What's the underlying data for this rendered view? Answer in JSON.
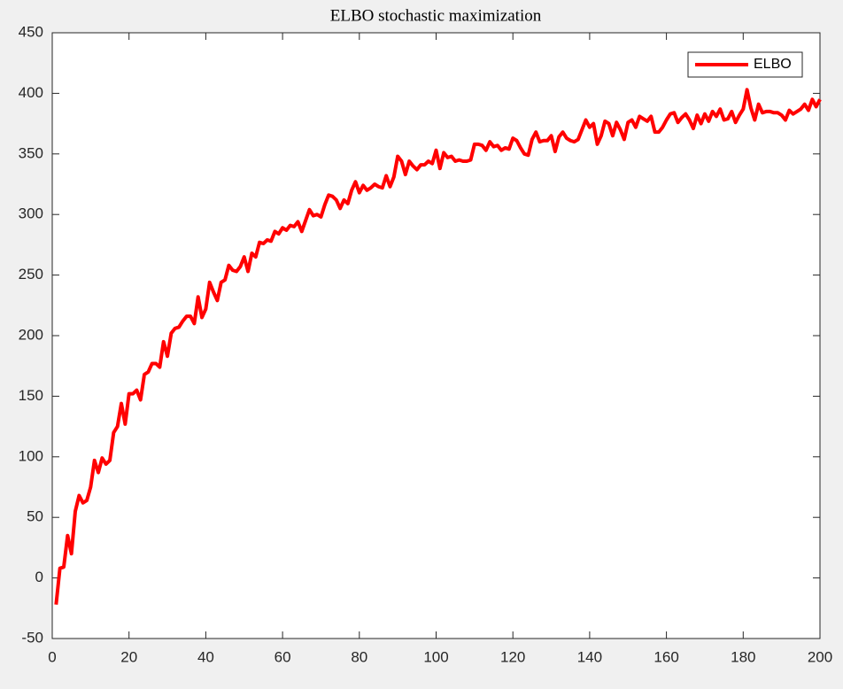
{
  "chart_data": {
    "type": "line",
    "title": "ELBO stochastic maximization",
    "x": [
      1,
      2,
      3,
      4,
      5,
      6,
      7,
      8,
      9,
      10,
      11,
      12,
      13,
      14,
      15,
      16,
      17,
      18,
      19,
      20,
      21,
      22,
      23,
      24,
      25,
      26,
      27,
      28,
      29,
      30,
      31,
      32,
      33,
      34,
      35,
      36,
      37,
      38,
      39,
      40,
      41,
      42,
      43,
      44,
      45,
      46,
      47,
      48,
      49,
      50,
      51,
      52,
      53,
      54,
      55,
      56,
      57,
      58,
      59,
      60,
      61,
      62,
      63,
      64,
      65,
      66,
      67,
      68,
      69,
      70,
      71,
      72,
      73,
      74,
      75,
      76,
      77,
      78,
      79,
      80,
      81,
      82,
      83,
      84,
      85,
      86,
      87,
      88,
      89,
      90,
      91,
      92,
      93,
      94,
      95,
      96,
      97,
      98,
      99,
      100,
      101,
      102,
      103,
      104,
      105,
      106,
      107,
      108,
      109,
      110,
      111,
      112,
      113,
      114,
      115,
      116,
      117,
      118,
      119,
      120,
      121,
      122,
      123,
      124,
      125,
      126,
      127,
      128,
      129,
      130,
      131,
      132,
      133,
      134,
      135,
      136,
      137,
      138,
      139,
      140,
      141,
      142,
      143,
      144,
      145,
      146,
      147,
      148,
      149,
      150,
      151,
      152,
      153,
      154,
      155,
      156,
      157,
      158,
      159,
      160,
      161,
      162,
      163,
      164,
      165,
      166,
      167,
      168,
      169,
      170,
      171,
      172,
      173,
      174,
      175,
      176,
      177,
      178,
      179,
      180,
      181,
      182,
      183,
      184,
      185,
      186,
      187,
      188,
      189,
      190,
      191,
      192,
      193,
      194,
      195,
      196,
      197,
      198,
      199,
      200
    ],
    "series": [
      {
        "name": "ELBO",
        "color": "#ff0000",
        "values": [
          -22,
          8,
          9,
          35,
          20,
          55,
          68,
          62,
          64,
          75,
          97,
          87,
          99,
          94,
          97,
          120,
          125,
          144,
          127,
          152,
          152,
          155,
          147,
          168,
          170,
          177,
          177,
          174,
          195,
          183,
          202,
          206,
          207,
          212,
          216,
          216,
          210,
          232,
          215,
          222,
          244,
          236,
          229,
          244,
          246,
          258,
          254,
          253,
          257,
          265,
          253,
          268,
          265,
          277,
          276,
          279,
          278,
          286,
          284,
          289,
          287,
          291,
          290,
          294,
          286,
          295,
          304,
          299,
          300,
          298,
          308,
          316,
          315,
          312,
          305,
          312,
          309,
          320,
          327,
          318,
          324,
          320,
          322,
          325,
          323,
          322,
          332,
          323,
          331,
          348,
          344,
          333,
          344,
          340,
          337,
          341,
          341,
          344,
          342,
          353,
          338,
          351,
          347,
          348,
          344,
          345,
          344,
          344,
          345,
          358,
          358,
          357,
          353,
          360,
          356,
          357,
          353,
          355,
          354,
          363,
          361,
          355,
          350,
          349,
          362,
          368,
          360,
          361,
          361,
          365,
          352,
          364,
          368,
          363,
          361,
          360,
          362,
          370,
          378,
          372,
          375,
          358,
          365,
          377,
          375,
          365,
          376,
          370,
          362,
          376,
          378,
          372,
          381,
          379,
          377,
          381,
          368,
          368,
          372,
          378,
          383,
          384,
          376,
          380,
          383,
          378,
          371,
          382,
          375,
          383,
          377,
          385,
          381,
          387,
          378,
          379,
          385,
          376,
          382,
          387,
          403,
          388,
          378,
          391,
          384,
          385,
          385,
          384,
          384,
          382,
          378,
          386,
          383,
          385,
          387,
          391,
          386,
          395,
          389,
          395
        ]
      }
    ],
    "xlim": [
      0,
      200
    ],
    "xticks": [
      0,
      20,
      40,
      60,
      80,
      100,
      120,
      140,
      160,
      180,
      200
    ],
    "ylim": [
      -50,
      450
    ],
    "yticks": [
      -50,
      0,
      50,
      100,
      150,
      200,
      250,
      300,
      350,
      400,
      450
    ],
    "legend": "upper right"
  }
}
